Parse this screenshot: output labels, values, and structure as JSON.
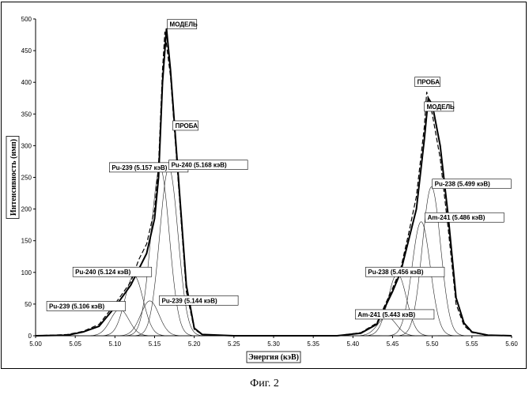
{
  "chart_data": {
    "type": "line",
    "xlabel": "Энергия (кэВ)",
    "ylabel": "Интенсивность (имп)",
    "xlim": [
      5.0,
      5.6
    ],
    "ylim": [
      0,
      500
    ],
    "x_ticks": [
      "5.00",
      "5.05",
      "5.10",
      "5.15",
      "5.20",
      "5.25",
      "5.30",
      "5.35",
      "5.40",
      "5.45",
      "5.50",
      "5.55",
      "5.60"
    ],
    "y_ticks": [
      "0",
      "50",
      "100",
      "150",
      "200",
      "250",
      "300",
      "350",
      "400",
      "450",
      "500"
    ],
    "grid": false,
    "caption": "Фиг. 2",
    "series": [
      {
        "name": "МОДЕЛЬ",
        "style": "solid",
        "points": [
          [
            5.0,
            0
          ],
          [
            5.04,
            1
          ],
          [
            5.06,
            6
          ],
          [
            5.08,
            15
          ],
          [
            5.1,
            45
          ],
          [
            5.12,
            80
          ],
          [
            5.13,
            105
          ],
          [
            5.14,
            130
          ],
          [
            5.15,
            185
          ],
          [
            5.155,
            250
          ],
          [
            5.16,
            400
          ],
          [
            5.165,
            485
          ],
          [
            5.17,
            420
          ],
          [
            5.18,
            250
          ],
          [
            5.19,
            80
          ],
          [
            5.2,
            12
          ],
          [
            5.21,
            2
          ],
          [
            5.25,
            0
          ],
          [
            5.38,
            0
          ],
          [
            5.41,
            4
          ],
          [
            5.43,
            18
          ],
          [
            5.45,
            70
          ],
          [
            5.46,
            100
          ],
          [
            5.47,
            150
          ],
          [
            5.48,
            200
          ],
          [
            5.49,
            310
          ],
          [
            5.495,
            375
          ],
          [
            5.5,
            365
          ],
          [
            5.51,
            300
          ],
          [
            5.52,
            190
          ],
          [
            5.53,
            60
          ],
          [
            5.54,
            20
          ],
          [
            5.55,
            6
          ],
          [
            5.57,
            1
          ],
          [
            5.6,
            0
          ]
        ]
      },
      {
        "name": "ПРОБА",
        "style": "dashed",
        "points": [
          [
            5.0,
            0
          ],
          [
            5.04,
            2
          ],
          [
            5.06,
            7
          ],
          [
            5.08,
            18
          ],
          [
            5.1,
            50
          ],
          [
            5.12,
            85
          ],
          [
            5.13,
            120
          ],
          [
            5.14,
            145
          ],
          [
            5.15,
            200
          ],
          [
            5.155,
            270
          ],
          [
            5.16,
            420
          ],
          [
            5.163,
            480
          ],
          [
            5.17,
            410
          ],
          [
            5.18,
            240
          ],
          [
            5.19,
            70
          ],
          [
            5.2,
            10
          ],
          [
            5.21,
            2
          ],
          [
            5.25,
            0
          ],
          [
            5.38,
            0
          ],
          [
            5.41,
            5
          ],
          [
            5.43,
            20
          ],
          [
            5.45,
            75
          ],
          [
            5.46,
            105
          ],
          [
            5.47,
            160
          ],
          [
            5.48,
            220
          ],
          [
            5.49,
            330
          ],
          [
            5.493,
            385
          ],
          [
            5.5,
            350
          ],
          [
            5.51,
            280
          ],
          [
            5.52,
            170
          ],
          [
            5.53,
            50
          ],
          [
            5.54,
            16
          ],
          [
            5.55,
            5
          ],
          [
            5.57,
            1
          ],
          [
            5.6,
            0
          ]
        ]
      }
    ],
    "components": [
      {
        "name": "Pu-239 (5.106 кэВ)",
        "center": 5.106,
        "height": 42
      },
      {
        "name": "Pu-240 (5.124 кэВ)",
        "center": 5.124,
        "height": 95
      },
      {
        "name": "Pu-239 (5.144 кэВ)",
        "center": 5.144,
        "height": 55
      },
      {
        "name": "Pu-239 (5.157 кэВ)",
        "center": 5.157,
        "height": 265
      },
      {
        "name": "Pu-240 (5.168 кэВ)",
        "center": 5.168,
        "height": 265
      },
      {
        "name": "Am-241 (5.443 кэВ)",
        "center": 5.443,
        "height": 30
      },
      {
        "name": "Pu-238 (5.456 кэВ)",
        "center": 5.456,
        "height": 98
      },
      {
        "name": "Am-241 (5.486 кэВ)",
        "center": 5.486,
        "height": 180
      },
      {
        "name": "Pu-238 (5.499 кэВ)",
        "center": 5.499,
        "height": 235
      }
    ],
    "annotations": [
      {
        "text": "МОДЕЛЬ",
        "x": 5.168,
        "y": 488
      },
      {
        "text": "ПРОБА",
        "x": 5.175,
        "y": 328
      },
      {
        "text": "ПРОБА",
        "x": 5.48,
        "y": 397
      },
      {
        "text": "МОДЕЛЬ",
        "x": 5.492,
        "y": 358
      },
      {
        "text": "Pu-239 (5.157 кэВ)",
        "x": 5.095,
        "y": 262
      },
      {
        "text": "Pu-240 (5.168 кэВ)",
        "x": 5.17,
        "y": 266
      },
      {
        "text": "Pu-240 (5.124 кэВ)",
        "x": 5.049,
        "y": 97
      },
      {
        "text": "Pu-239 (5.106 кэВ)",
        "x": 5.016,
        "y": 43
      },
      {
        "text": "Pu-239 (5.144 кэВ)",
        "x": 5.158,
        "y": 52
      },
      {
        "text": "Pu-238 (5.456 кэВ)",
        "x": 5.418,
        "y": 97
      },
      {
        "text": "Am-241 (5.443 кэВ)",
        "x": 5.405,
        "y": 30
      },
      {
        "text": "Pu-238 (5.499 кэВ)",
        "x": 5.502,
        "y": 236
      },
      {
        "text": "Am-241 (5.486 кэВ)",
        "x": 5.493,
        "y": 183
      }
    ]
  }
}
